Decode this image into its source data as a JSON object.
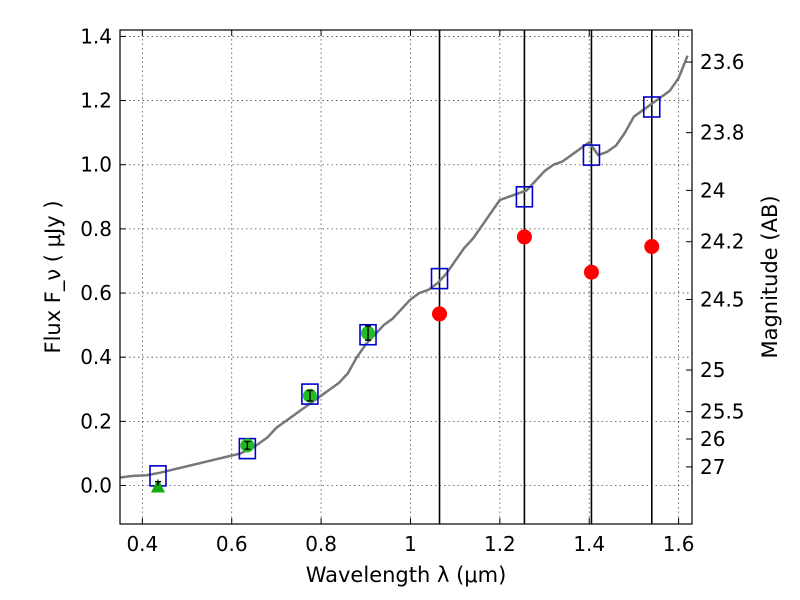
{
  "chart_data": {
    "type": "scatter",
    "xlabel": "Wavelength  λ (μm)",
    "ylabel": "Flux  F_ν  ( μJy )",
    "ylabel_right": "Magnitude (AB)",
    "xlim": [
      0.35,
      1.63
    ],
    "ylim": [
      -0.12,
      1.42
    ],
    "x_ticks": [
      0.4,
      0.6,
      0.8,
      1.0,
      1.2,
      1.4,
      1.6
    ],
    "x_tick_labels": [
      "0.4",
      "0.6",
      "0.8",
      "1",
      "1.2",
      "1.4",
      "1.6"
    ],
    "y_ticks": [
      0.0,
      0.2,
      0.4,
      0.6,
      0.8,
      1.0,
      1.2,
      1.4
    ],
    "y_tick_labels": [
      "0.0",
      "0.2",
      "0.4",
      "0.6",
      "0.8",
      "1.0",
      "1.2",
      "1.4"
    ],
    "right_ticks": [
      {
        "label": "23.6",
        "flux": 1.32
      },
      {
        "label": "23.8",
        "flux": 1.1
      },
      {
        "label": "24",
        "flux": 0.92
      },
      {
        "label": "24.2",
        "flux": 0.76
      },
      {
        "label": "24.5",
        "flux": 0.58
      },
      {
        "label": "25",
        "flux": 0.36
      },
      {
        "label": "25.5",
        "flux": 0.23
      },
      {
        "label": "26",
        "flux": 0.145
      },
      {
        "label": "27",
        "flux": 0.058
      }
    ],
    "grid": true,
    "vertical_lines": [
      1.065,
      1.255,
      1.405,
      1.54
    ],
    "series": [
      {
        "kind": "spectrum",
        "color": "#777777",
        "x": [
          0.35,
          0.38,
          0.41,
          0.44,
          0.47,
          0.5,
          0.53,
          0.56,
          0.59,
          0.62,
          0.65,
          0.68,
          0.7,
          0.72,
          0.74,
          0.76,
          0.78,
          0.8,
          0.82,
          0.84,
          0.86,
          0.88,
          0.9,
          0.92,
          0.94,
          0.96,
          0.98,
          1.0,
          1.02,
          1.04,
          1.06,
          1.08,
          1.1,
          1.12,
          1.14,
          1.16,
          1.18,
          1.2,
          1.22,
          1.24,
          1.26,
          1.28,
          1.3,
          1.32,
          1.34,
          1.36,
          1.38,
          1.4,
          1.42,
          1.44,
          1.46,
          1.48,
          1.5,
          1.52,
          1.54,
          1.56,
          1.58,
          1.6,
          1.62
        ],
        "y": [
          0.025,
          0.03,
          0.032,
          0.04,
          0.05,
          0.06,
          0.07,
          0.08,
          0.09,
          0.1,
          0.12,
          0.15,
          0.18,
          0.2,
          0.22,
          0.24,
          0.26,
          0.28,
          0.3,
          0.32,
          0.35,
          0.4,
          0.44,
          0.47,
          0.5,
          0.52,
          0.55,
          0.58,
          0.6,
          0.61,
          0.63,
          0.66,
          0.7,
          0.74,
          0.77,
          0.81,
          0.85,
          0.89,
          0.9,
          0.91,
          0.92,
          0.95,
          0.98,
          1.0,
          1.01,
          1.03,
          1.05,
          1.07,
          1.03,
          1.04,
          1.06,
          1.1,
          1.15,
          1.17,
          1.19,
          1.21,
          1.23,
          1.27,
          1.34
        ]
      },
      {
        "kind": "model_open_squares",
        "color": "#0000cc",
        "x": [
          0.435,
          0.635,
          0.775,
          0.905,
          1.065,
          1.255,
          1.405,
          1.54
        ],
        "y": [
          0.03,
          0.115,
          0.285,
          0.47,
          0.645,
          0.9,
          1.03,
          1.18
        ]
      },
      {
        "kind": "observed_circles",
        "color": "#22bb22",
        "x": [
          0.635,
          0.775,
          0.905
        ],
        "y": [
          0.125,
          0.28,
          0.475
        ],
        "yerr": [
          0.012,
          0.016,
          0.022
        ]
      },
      {
        "kind": "upper_limit_triangle",
        "color": "#11aa11",
        "x": [
          0.435
        ],
        "y": [
          0.0
        ],
        "errbar_top": [
          0.012
        ]
      },
      {
        "kind": "predicted_red_circles",
        "color": "#ff0000",
        "x": [
          1.065,
          1.255,
          1.405,
          1.54
        ],
        "y": [
          0.535,
          0.775,
          0.665,
          0.745
        ]
      }
    ]
  }
}
